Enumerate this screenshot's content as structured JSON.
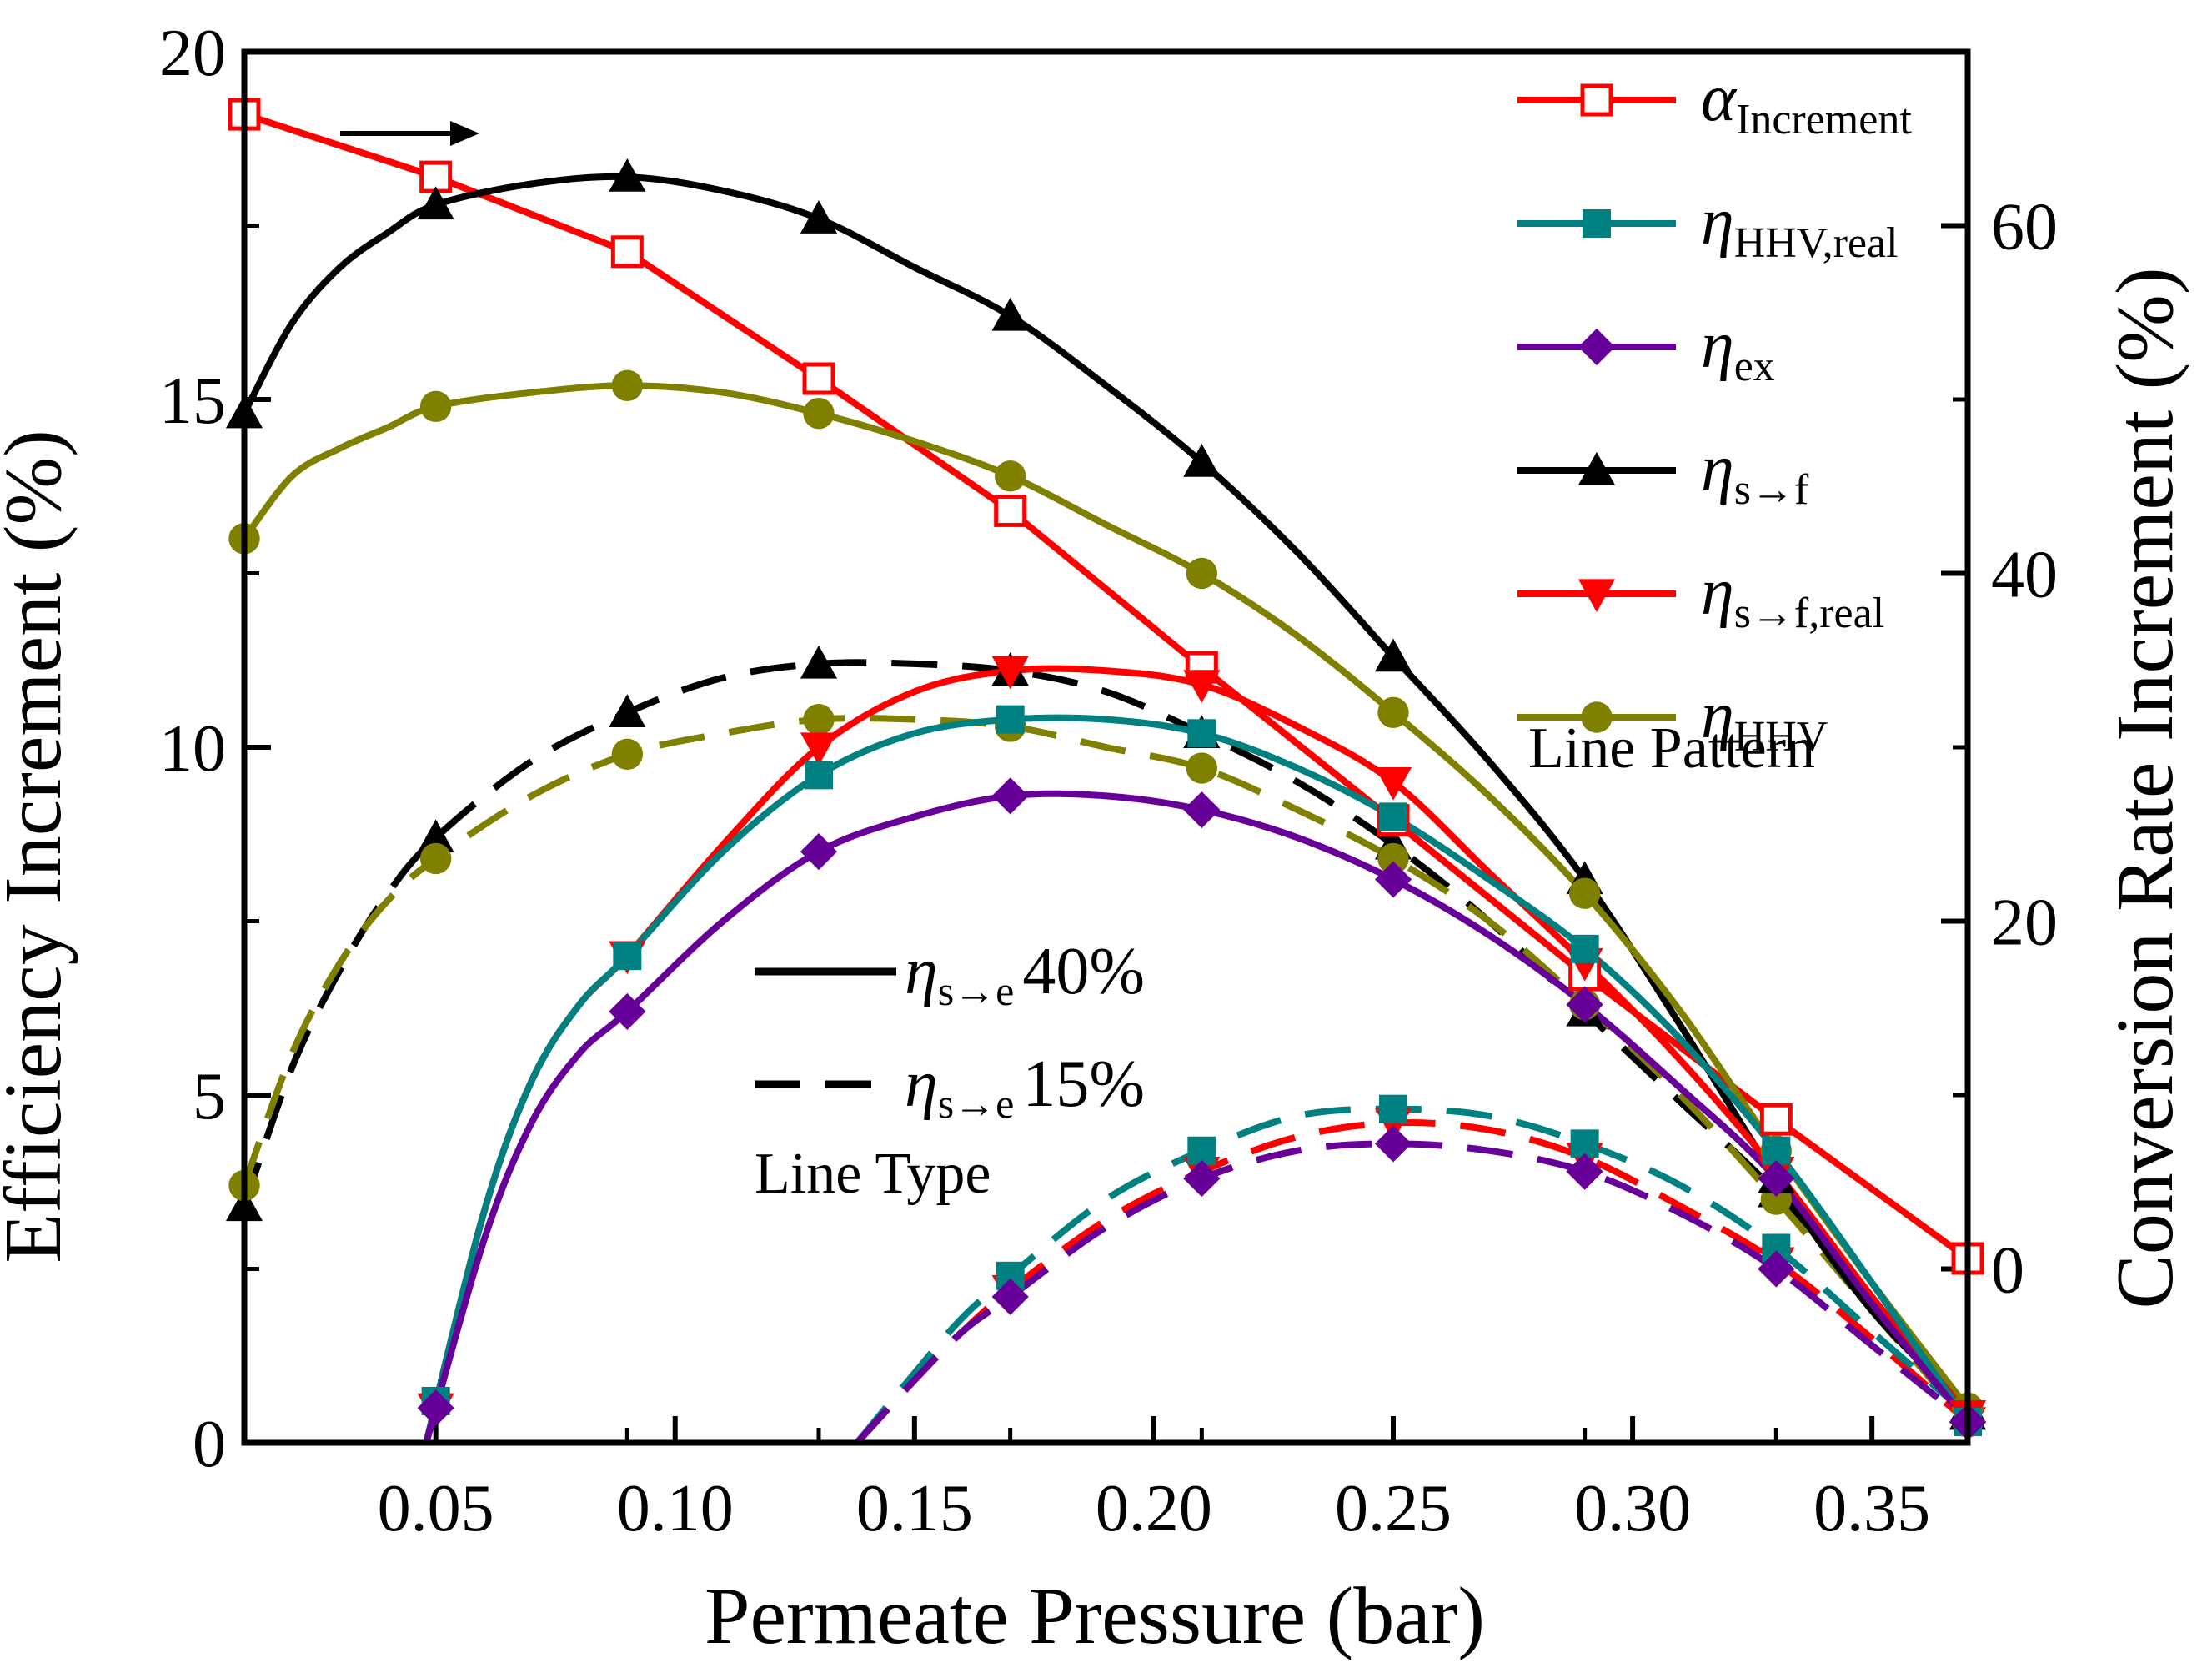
{
  "chart_data": {
    "type": "line",
    "xlabel": "Permeate Pressure (bar)",
    "ylabel": "Efficiency Increment (%)",
    "y2label": "Conversion Rate Increment (%)",
    "xlim": [
      0.01,
      0.37
    ],
    "ylim": [
      0,
      20
    ],
    "y2lim": [
      -10,
      70
    ],
    "xticks": [
      0.05,
      0.1,
      0.15,
      0.2,
      0.25,
      0.3,
      0.35
    ],
    "xtick_labels": [
      "0.05",
      "0.10",
      "0.15",
      "0.20",
      "0.25",
      "0.30",
      "0.35"
    ],
    "yticks": [
      0,
      5,
      10,
      15,
      20
    ],
    "ytick_labels": [
      "0",
      "5",
      "10",
      "15",
      "20"
    ],
    "y2ticks": [
      0,
      20,
      40,
      60
    ],
    "y2tick_labels": [
      "0",
      "20",
      "40",
      "60"
    ],
    "x_markers": [
      0.01,
      0.05,
      0.09,
      0.13,
      0.17,
      0.21,
      0.25,
      0.29,
      0.33,
      0.37
    ],
    "series": [
      {
        "key": "alpha",
        "color": "#ff0000",
        "marker": "square-open",
        "axis": "right",
        "dash": false,
        "x": [
          0.01,
          0.05,
          0.09,
          0.13,
          0.17,
          0.21,
          0.25,
          0.29,
          0.33,
          0.37
        ],
        "values": [
          66.4,
          62.8,
          58.5,
          51.2,
          43.6,
          34.6,
          25.8,
          16.9,
          8.6,
          0.6
        ]
      },
      {
        "key": "eta_s_f_40",
        "color": "#000000",
        "marker": "triangle-up",
        "axis": "left",
        "dash": false,
        "x": [
          0.01,
          0.02,
          0.03,
          0.04,
          0.05,
          0.07,
          0.09,
          0.11,
          0.13,
          0.15,
          0.17,
          0.19,
          0.21,
          0.23,
          0.25,
          0.27,
          0.29,
          0.31,
          0.33,
          0.35,
          0.37
        ],
        "values": [
          14.8,
          16.1,
          16.9,
          17.4,
          17.8,
          18.1,
          18.2,
          18.0,
          17.6,
          16.9,
          16.2,
          15.2,
          14.1,
          12.8,
          11.3,
          9.8,
          8.1,
          6.0,
          3.8,
          1.9,
          0.5
        ],
        "marker_x": [
          0.01,
          0.05,
          0.09,
          0.13,
          0.17,
          0.21,
          0.25,
          0.29,
          0.33,
          0.37
        ],
        "marker_values": [
          14.8,
          17.8,
          18.2,
          17.6,
          16.2,
          14.1,
          11.3,
          8.1,
          3.8,
          0.5
        ]
      },
      {
        "key": "eta_HHV_40",
        "color": "#808000",
        "marker": "circle",
        "axis": "left",
        "dash": false,
        "x": [
          0.01,
          0.02,
          0.03,
          0.04,
          0.05,
          0.07,
          0.09,
          0.11,
          0.13,
          0.15,
          0.17,
          0.19,
          0.21,
          0.23,
          0.25,
          0.27,
          0.29,
          0.31,
          0.33,
          0.35,
          0.37
        ],
        "values": [
          13.0,
          13.9,
          14.3,
          14.6,
          14.9,
          15.1,
          15.2,
          15.1,
          14.8,
          14.4,
          13.9,
          13.2,
          12.5,
          11.6,
          10.5,
          9.3,
          7.9,
          6.2,
          4.2,
          2.3,
          0.5
        ],
        "marker_x": [
          0.01,
          0.05,
          0.09,
          0.13,
          0.17,
          0.21,
          0.25,
          0.29,
          0.33,
          0.37
        ],
        "marker_values": [
          13.0,
          14.9,
          15.2,
          14.8,
          13.9,
          12.5,
          10.5,
          7.9,
          4.2,
          0.5
        ]
      },
      {
        "key": "eta_s_f_real_40",
        "color": "#ff0000",
        "marker": "triangle-down",
        "axis": "left",
        "dash": false,
        "x": [
          0.048,
          0.06,
          0.07,
          0.08,
          0.09,
          0.11,
          0.13,
          0.15,
          0.17,
          0.19,
          0.21,
          0.23,
          0.25,
          0.27,
          0.29,
          0.31,
          0.33,
          0.35,
          0.37
        ],
        "values": [
          0.0,
          3.3,
          5.2,
          6.3,
          7.0,
          8.6,
          10.0,
          10.8,
          11.1,
          11.1,
          10.9,
          10.3,
          9.5,
          8.2,
          6.9,
          5.5,
          3.9,
          2.1,
          0.4
        ],
        "marker_x": [
          0.05,
          0.09,
          0.13,
          0.17,
          0.21,
          0.25,
          0.29,
          0.33,
          0.37
        ],
        "marker_values": [
          0.5,
          7.0,
          10.0,
          11.1,
          10.9,
          9.5,
          6.9,
          3.9,
          0.4
        ]
      },
      {
        "key": "eta_HHV_real_40",
        "color": "#008080",
        "marker": "square",
        "axis": "left",
        "dash": false,
        "x": [
          0.048,
          0.06,
          0.07,
          0.08,
          0.09,
          0.11,
          0.13,
          0.15,
          0.17,
          0.19,
          0.21,
          0.23,
          0.25,
          0.27,
          0.29,
          0.31,
          0.33,
          0.35,
          0.37
        ],
        "values": [
          0.0,
          3.3,
          5.2,
          6.3,
          7.0,
          8.5,
          9.6,
          10.2,
          10.4,
          10.4,
          10.2,
          9.7,
          9.0,
          8.1,
          7.1,
          5.8,
          4.2,
          2.3,
          0.3
        ],
        "marker_x": [
          0.05,
          0.09,
          0.13,
          0.17,
          0.21,
          0.25,
          0.29,
          0.33,
          0.37
        ],
        "marker_values": [
          0.6,
          7.0,
          9.6,
          10.4,
          10.2,
          9.0,
          7.1,
          4.2,
          0.3
        ]
      },
      {
        "key": "eta_ex_40",
        "color": "#660099",
        "marker": "diamond",
        "axis": "left",
        "dash": false,
        "x": [
          0.048,
          0.06,
          0.07,
          0.08,
          0.09,
          0.11,
          0.13,
          0.15,
          0.17,
          0.19,
          0.21,
          0.23,
          0.25,
          0.27,
          0.29,
          0.31,
          0.33,
          0.35,
          0.37
        ],
        "values": [
          0.0,
          2.9,
          4.6,
          5.6,
          6.2,
          7.5,
          8.5,
          9.0,
          9.3,
          9.3,
          9.1,
          8.7,
          8.1,
          7.3,
          6.3,
          5.1,
          3.8,
          2.0,
          0.3
        ],
        "marker_x": [
          0.05,
          0.09,
          0.13,
          0.17,
          0.21,
          0.25,
          0.29,
          0.33,
          0.37
        ],
        "marker_values": [
          0.5,
          6.2,
          8.5,
          9.3,
          9.1,
          8.1,
          6.3,
          3.8,
          0.3
        ]
      },
      {
        "key": "eta_s_f_15",
        "color": "#000000",
        "marker": "triangle-up",
        "axis": "left",
        "dash": true,
        "x": [
          0.01,
          0.02,
          0.03,
          0.04,
          0.05,
          0.07,
          0.09,
          0.11,
          0.13,
          0.15,
          0.17,
          0.19,
          0.21,
          0.23,
          0.25,
          0.27,
          0.29,
          0.31,
          0.33,
          0.35,
          0.37
        ],
        "values": [
          3.4,
          5.4,
          6.8,
          7.9,
          8.7,
          9.8,
          10.5,
          11.0,
          11.2,
          11.2,
          11.1,
          10.8,
          10.2,
          9.5,
          8.6,
          7.5,
          6.2,
          4.9,
          3.6,
          2.0,
          0.4
        ],
        "marker_x": [
          0.01,
          0.05,
          0.09,
          0.13,
          0.17,
          0.21,
          0.25,
          0.29,
          0.33,
          0.37
        ],
        "marker_values": [
          3.4,
          8.7,
          10.5,
          11.2,
          11.1,
          10.2,
          8.6,
          6.2,
          3.6,
          0.4
        ]
      },
      {
        "key": "eta_HHV_15",
        "color": "#808000",
        "marker": "circle",
        "axis": "left",
        "dash": true,
        "x": [
          0.01,
          0.02,
          0.03,
          0.04,
          0.05,
          0.07,
          0.09,
          0.11,
          0.13,
          0.15,
          0.17,
          0.19,
          0.21,
          0.23,
          0.25,
          0.27,
          0.29,
          0.31,
          0.33,
          0.35,
          0.37
        ],
        "values": [
          3.7,
          5.6,
          6.9,
          7.8,
          8.4,
          9.3,
          9.9,
          10.2,
          10.4,
          10.4,
          10.3,
          10.0,
          9.7,
          9.1,
          8.4,
          7.5,
          6.3,
          5.0,
          3.5,
          1.9,
          0.3
        ],
        "marker_x": [
          0.01,
          0.05,
          0.09,
          0.13,
          0.17,
          0.21,
          0.25,
          0.29,
          0.33,
          0.37
        ],
        "marker_values": [
          3.7,
          8.4,
          9.9,
          10.4,
          10.3,
          9.7,
          8.4,
          6.3,
          3.5,
          0.3
        ]
      },
      {
        "key": "eta_s_f_real_15",
        "color": "#ff0000",
        "marker": "triangle-down",
        "axis": "left",
        "dash": true,
        "x": [
          0.138,
          0.15,
          0.16,
          0.17,
          0.19,
          0.21,
          0.23,
          0.25,
          0.27,
          0.29,
          0.31,
          0.33,
          0.35,
          0.37
        ],
        "values": [
          0.0,
          0.9,
          1.6,
          2.2,
          3.2,
          3.9,
          4.4,
          4.6,
          4.5,
          4.1,
          3.4,
          2.6,
          1.5,
          0.3
        ],
        "marker_x": [
          0.17,
          0.21,
          0.25,
          0.29,
          0.33,
          0.37
        ],
        "marker_values": [
          2.2,
          3.9,
          4.6,
          4.1,
          2.6,
          0.3
        ]
      },
      {
        "key": "eta_HHV_real_15",
        "color": "#008080",
        "marker": "square",
        "axis": "left",
        "dash": true,
        "x": [
          0.138,
          0.15,
          0.16,
          0.17,
          0.19,
          0.21,
          0.23,
          0.25,
          0.27,
          0.29,
          0.31,
          0.33,
          0.35,
          0.37
        ],
        "values": [
          0.0,
          1.0,
          1.8,
          2.4,
          3.5,
          4.2,
          4.7,
          4.8,
          4.7,
          4.3,
          3.7,
          2.8,
          1.6,
          0.4
        ],
        "marker_x": [
          0.17,
          0.21,
          0.25,
          0.29,
          0.33,
          0.37
        ],
        "marker_values": [
          2.4,
          4.2,
          4.8,
          4.3,
          2.8,
          0.4
        ]
      },
      {
        "key": "eta_ex_15",
        "color": "#660099",
        "marker": "diamond",
        "axis": "left",
        "dash": true,
        "x": [
          0.138,
          0.15,
          0.16,
          0.17,
          0.19,
          0.21,
          0.23,
          0.25,
          0.27,
          0.29,
          0.31,
          0.33,
          0.35,
          0.37
        ],
        "values": [
          0.0,
          0.9,
          1.6,
          2.1,
          3.1,
          3.8,
          4.2,
          4.3,
          4.2,
          3.9,
          3.3,
          2.5,
          1.4,
          0.3
        ],
        "marker_x": [
          0.17,
          0.21,
          0.25,
          0.29,
          0.33,
          0.37
        ],
        "marker_values": [
          2.1,
          3.8,
          4.3,
          3.9,
          2.5,
          0.3
        ]
      }
    ],
    "legend_pattern": {
      "title": "Line Pattern",
      "entries": [
        {
          "series": "alpha",
          "symbol": "α",
          "sub": "Increment"
        },
        {
          "series": "eta_HHV_real_40",
          "symbol": "η",
          "sub": "HHV,real"
        },
        {
          "series": "eta_ex_40",
          "symbol": "η",
          "sub": "ex"
        },
        {
          "series": "eta_s_f_40",
          "symbol": "η",
          "sub": "s→f"
        },
        {
          "series": "eta_s_f_real_40",
          "symbol": "η",
          "sub": "s→f,real"
        },
        {
          "series": "eta_HHV_40",
          "symbol": "η",
          "sub": "HHV"
        }
      ]
    },
    "legend_type": {
      "title": "Line Type",
      "entries": [
        {
          "symbol": "η",
          "sub": "s→e",
          "value": "40%",
          "dash": false
        },
        {
          "symbol": "η",
          "sub": "s→e",
          "value": "15%",
          "dash": true
        }
      ]
    },
    "annotation": "arrow pointing to right axis for α Increment"
  }
}
